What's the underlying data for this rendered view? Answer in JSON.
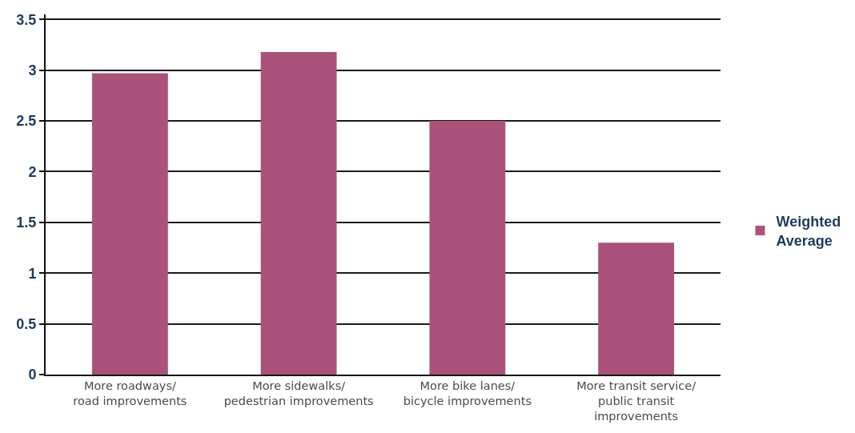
{
  "chart_data": {
    "type": "bar",
    "categories": [
      "More roadways/ road improvements",
      "More sidewalks/ pedestrian improvements",
      "More bike lanes/ bicycle improvements",
      "More transit service/ public transit improvements"
    ],
    "series": [
      {
        "name": "Weighted Average",
        "color": "#aa527b",
        "values": [
          2.97,
          3.18,
          2.5,
          1.3
        ]
      }
    ],
    "ylim": [
      0,
      3.55
    ],
    "yticks": [
      0,
      0.5,
      1,
      1.5,
      2,
      2.5,
      3,
      3.5
    ],
    "grid": "y",
    "legend": "right"
  }
}
